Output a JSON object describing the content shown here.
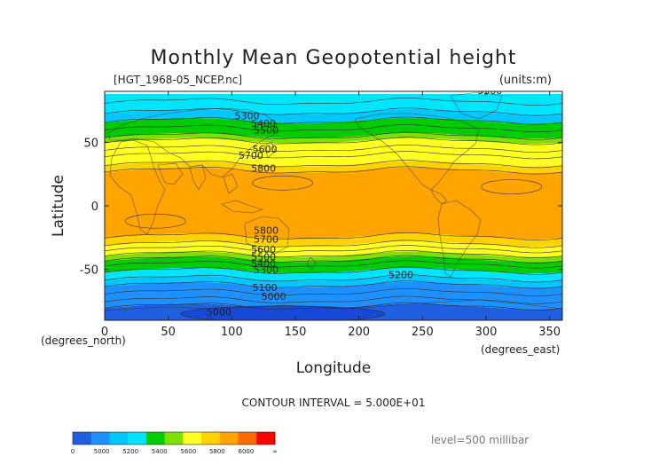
{
  "chart_data": {
    "type": "heatmap",
    "title": "Monthly Mean Geopotential height",
    "subtitle_left": "[HGT_1968-05_NCEP.nc]",
    "subtitle_right": "(units:m)",
    "xlabel": "Longitude",
    "ylabel": "Latitude",
    "x_unit_label": "(degrees_east)",
    "y_unit_label": "(degrees_north)",
    "xlim": [
      0,
      360
    ],
    "ylim": [
      -90,
      90
    ],
    "x_ticks": [
      0,
      50,
      100,
      150,
      200,
      250,
      300,
      350
    ],
    "y_ticks": [
      -50,
      0,
      50
    ],
    "contour_interval_label": "CONTOUR INTERVAL = 5.000E+01",
    "level_label": "level=500 millibar",
    "contour_labels": [
      {
        "value": "5300",
        "lon": 303,
        "lat": 88
      },
      {
        "value": "5300",
        "lon": 112,
        "lat": 68
      },
      {
        "value": "5400",
        "lon": 125,
        "lat": 62
      },
      {
        "value": "5500",
        "lon": 127,
        "lat": 57
      },
      {
        "value": "5600",
        "lon": 126,
        "lat": 42
      },
      {
        "value": "5700",
        "lon": 115,
        "lat": 37
      },
      {
        "value": "5800",
        "lon": 125,
        "lat": 27
      },
      {
        "value": "5800",
        "lon": 127,
        "lat": -22
      },
      {
        "value": "5700",
        "lon": 127,
        "lat": -29
      },
      {
        "value": "5600",
        "lon": 125,
        "lat": -37
      },
      {
        "value": "5500",
        "lon": 125,
        "lat": -43
      },
      {
        "value": "5400",
        "lon": 125,
        "lat": -48
      },
      {
        "value": "5300",
        "lon": 127,
        "lat": -53
      },
      {
        "value": "5200",
        "lon": 233,
        "lat": -57
      },
      {
        "value": "5100",
        "lon": 126,
        "lat": -67
      },
      {
        "value": "5000",
        "lon": 133,
        "lat": -74
      },
      {
        "value": "5000",
        "lon": 90,
        "lat": -86
      }
    ],
    "bands": [
      {
        "lat_from": 90,
        "lat_to": 88,
        "color": "#ffffff"
      },
      {
        "lat_from": 88,
        "lat_to": 74,
        "color": "#00e5ff"
      },
      {
        "lat_from": 74,
        "lat_to": 67,
        "color": "#00c8ff"
      },
      {
        "lat_from": 67,
        "lat_to": 55,
        "color": "#00cc00"
      },
      {
        "lat_from": 55,
        "lat_to": 51,
        "color": "#7fe000"
      },
      {
        "lat_from": 51,
        "lat_to": 33,
        "color": "#ffff22"
      },
      {
        "lat_from": 33,
        "lat_to": 28,
        "color": "#ffd200"
      },
      {
        "lat_from": 28,
        "lat_to": -24,
        "color": "#ffa400"
      },
      {
        "lat_from": -24,
        "lat_to": -30,
        "color": "#ffd200"
      },
      {
        "lat_from": -30,
        "lat_to": -38,
        "color": "#ffff22"
      },
      {
        "lat_from": -38,
        "lat_to": -42,
        "color": "#7fe000"
      },
      {
        "lat_from": -42,
        "lat_to": -51,
        "color": "#00cc00"
      },
      {
        "lat_from": -51,
        "lat_to": -57,
        "color": "#00e5ff"
      },
      {
        "lat_from": -57,
        "lat_to": -62,
        "color": "#00c8ff"
      },
      {
        "lat_from": -62,
        "lat_to": -79,
        "color": "#1e90ff"
      },
      {
        "lat_from": -79,
        "lat_to": -90,
        "color": "#1f5fe0"
      }
    ],
    "low_center": {
      "lon": 140,
      "lat": -85,
      "color": "#1848d8"
    },
    "colorbar": {
      "colors": [
        "#1f5fe0",
        "#1e90ff",
        "#00c8ff",
        "#00e5ff",
        "#00cc00",
        "#7fe000",
        "#ffff22",
        "#ffd200",
        "#ffa400",
        "#ff6a00",
        "#ff0000"
      ],
      "labels": [
        "0",
        "5000",
        "5200",
        "5400",
        "5600",
        "5800",
        "6000",
        "∞"
      ]
    }
  }
}
